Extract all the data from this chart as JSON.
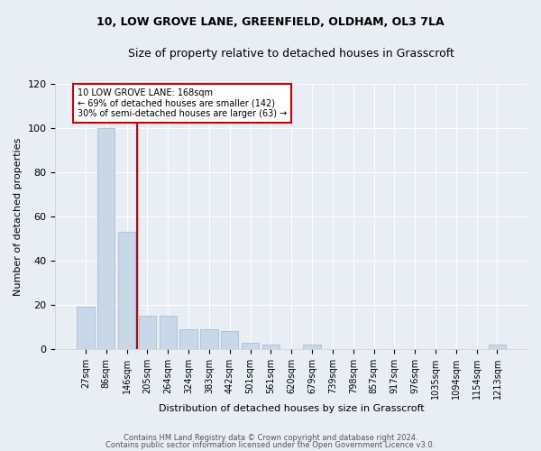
{
  "title1": "10, LOW GROVE LANE, GREENFIELD, OLDHAM, OL3 7LA",
  "title2": "Size of property relative to detached houses in Grasscroft",
  "xlabel": "Distribution of detached houses by size in Grasscroft",
  "ylabel": "Number of detached properties",
  "bar_values": [
    19,
    100,
    53,
    15,
    15,
    9,
    9,
    8,
    3,
    2,
    0,
    2,
    0,
    0,
    0,
    0,
    0,
    0,
    0,
    0,
    2
  ],
  "bin_labels": [
    "27sqm",
    "86sqm",
    "146sqm",
    "205sqm",
    "264sqm",
    "324sqm",
    "383sqm",
    "442sqm",
    "501sqm",
    "561sqm",
    "620sqm",
    "679sqm",
    "739sqm",
    "798sqm",
    "857sqm",
    "917sqm",
    "976sqm",
    "1035sqm",
    "1094sqm",
    "1154sqm",
    "1213sqm"
  ],
  "bar_color": "#c8d8e8",
  "bar_edge_color": "#a0b8cc",
  "background_color": "#e8eef4",
  "grid_color": "#ffffff",
  "red_line_x": 2,
  "annotation_text": "10 LOW GROVE LANE: 168sqm\n← 69% of detached houses are smaller (142)\n30% of semi-detached houses are larger (63) →",
  "annotation_box_color": "#ffffff",
  "annotation_box_edge": "#cc0000",
  "red_line_color": "#cc0000",
  "ylim": [
    0,
    120
  ],
  "yticks": [
    0,
    20,
    40,
    60,
    80,
    100,
    120
  ],
  "footer1": "Contains HM Land Registry data © Crown copyright and database right 2024.",
  "footer2": "Contains public sector information licensed under the Open Government Licence v3.0."
}
